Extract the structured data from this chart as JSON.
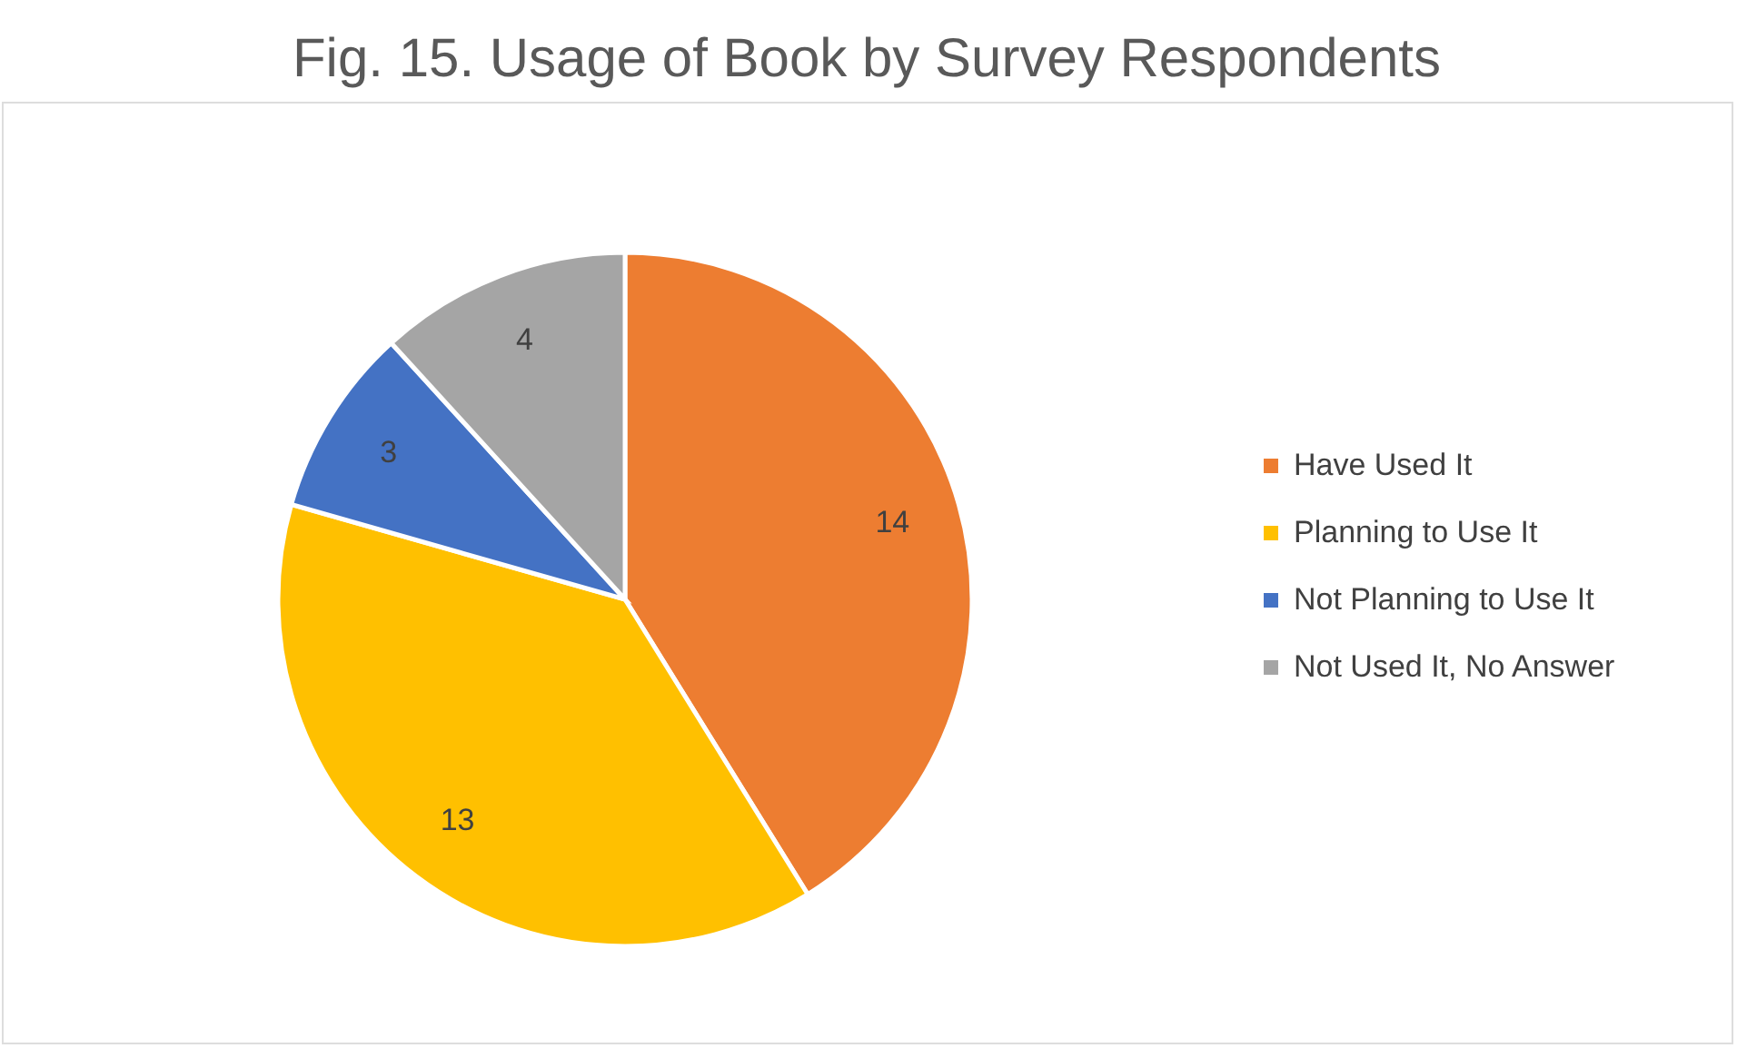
{
  "chart_data": {
    "type": "pie",
    "title": "Fig. 15. Usage of Book by Survey Respondents",
    "categories": [
      "Have Used It",
      "Planning to Use It",
      "Not Planning to Use It",
      "Not Used It, No Answer"
    ],
    "values": [
      14,
      13,
      3,
      4
    ],
    "colors": [
      "#ed7d31",
      "#ffc000",
      "#4472c4",
      "#a5a5a5"
    ],
    "data_labels": true,
    "legend": "right"
  }
}
